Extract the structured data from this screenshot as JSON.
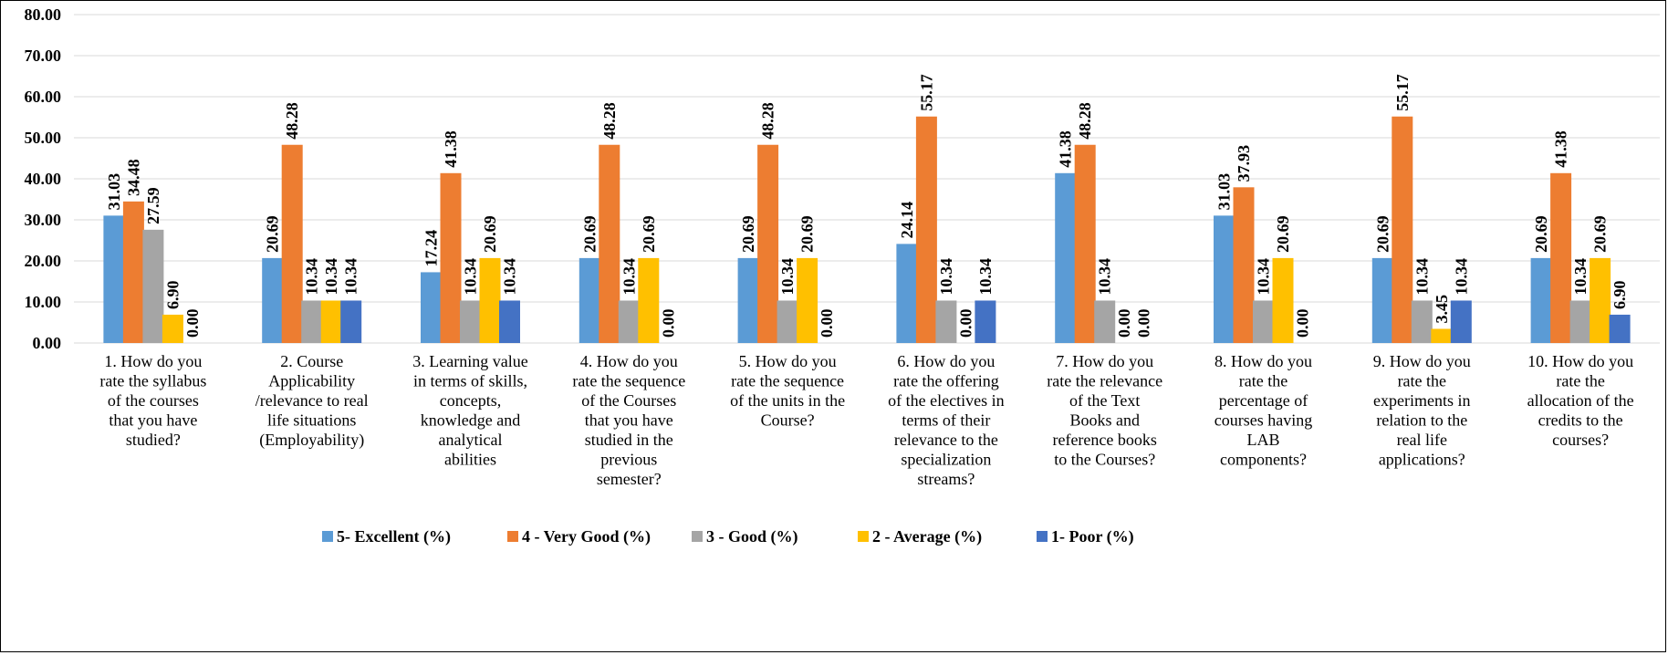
{
  "chart_data": {
    "type": "bar",
    "title": "",
    "xlabel": "",
    "ylabel": "",
    "ylim": [
      0,
      80
    ],
    "yticks": [
      "0.00",
      "10.00",
      "20.00",
      "30.00",
      "40.00",
      "50.00",
      "60.00",
      "70.00",
      "80.00"
    ],
    "grid": true,
    "legend_position": "bottom",
    "categories": [
      "1. How do you rate the syllabus of the courses that you have studied?",
      "2. Course Applicability /relevance to real life situations (Employability)",
      "3. Learning value in terms of skills, concepts, knowledge and analytical abilities",
      "4. How do you rate the sequence of the Courses that you have studied in the previous semester?",
      "5. How do you rate the sequence of the units in the Course?",
      "6. How do you rate the offering of the electives in terms of their relevance to the specialization streams?",
      "7. How do you rate the relevance of the Text Books and reference books to the Courses?",
      "8. How do you rate the percentage of courses having LAB components?",
      "9. How do you rate the experiments in relation to the real life applications?",
      "10. How do you rate the allocation of the credits to the courses?"
    ],
    "category_lines": [
      [
        "1. How do you",
        "rate the syllabus",
        "of the courses",
        "that you have",
        "studied?"
      ],
      [
        "2. Course",
        "Applicability",
        "/relevance to real",
        "life situations",
        "(Employability)"
      ],
      [
        "3. Learning value",
        "in terms of skills,",
        "concepts,",
        "knowledge and",
        "analytical",
        "abilities"
      ],
      [
        "4. How do you",
        "rate the sequence",
        "of the Courses",
        "that you have",
        "studied in the",
        "previous",
        "semester?"
      ],
      [
        "5. How do you",
        "rate the sequence",
        "of the units in the",
        "Course?"
      ],
      [
        "6. How do you",
        "rate the offering",
        "of the electives in",
        "terms of their",
        "relevance to the",
        "specialization",
        "streams?"
      ],
      [
        "7. How do you",
        "rate the relevance",
        "of the Text",
        "Books and",
        "reference books",
        "to the Courses?"
      ],
      [
        "8. How do you",
        "rate the",
        "percentage of",
        "courses having",
        "LAB",
        "components?"
      ],
      [
        "9. How do you",
        "rate the",
        "experiments in",
        "relation to the",
        "real life",
        "applications?"
      ],
      [
        "10. How do you",
        "rate the",
        "allocation of the",
        "credits to the",
        "courses?"
      ]
    ],
    "series": [
      {
        "name": "5- Excellent (%)",
        "color": "#5B9BD5",
        "values": [
          31.03,
          20.69,
          17.24,
          20.69,
          20.69,
          24.14,
          41.38,
          31.03,
          20.69,
          20.69
        ],
        "labels": [
          "31.03",
          "20.69",
          "17.24",
          "20.69",
          "20.69",
          "24.14",
          "41.38",
          "31.03",
          "20.69",
          "20.69"
        ]
      },
      {
        "name": "4 - Very Good (%)",
        "color": "#ED7D31",
        "values": [
          34.48,
          48.28,
          41.38,
          48.28,
          48.28,
          55.17,
          48.28,
          37.93,
          55.17,
          41.38
        ],
        "labels": [
          "34.48",
          "48.28",
          "41.38",
          "48.28",
          "48.28",
          "55.17",
          "48.28",
          "37.93",
          "55.17",
          "41.38"
        ]
      },
      {
        "name": "3 - Good (%)",
        "color": "#A5A5A5",
        "values": [
          27.59,
          10.34,
          10.34,
          10.34,
          10.34,
          10.34,
          10.34,
          10.34,
          10.34,
          10.34
        ],
        "labels": [
          "27.59",
          "10.34",
          "10.34",
          "10.34",
          "10.34",
          "10.34",
          "10.34",
          "10.34",
          "10.34",
          "10.34"
        ]
      },
      {
        "name": "2 - Average (%)",
        "color": "#FFC000",
        "values": [
          6.9,
          10.34,
          20.69,
          20.69,
          20.69,
          0.0,
          0.0,
          20.69,
          3.45,
          20.69
        ],
        "labels": [
          "6.90",
          "10.34",
          "20.69",
          "20.69",
          "20.69",
          "0.00",
          "0.00",
          "20.69",
          "3.45",
          "20.69"
        ]
      },
      {
        "name": "1- Poor (%)",
        "color": "#4472C4",
        "values": [
          0.0,
          10.34,
          10.34,
          0.0,
          0.0,
          10.34,
          0.0,
          0.0,
          10.34,
          6.9
        ],
        "labels": [
          "0.00",
          "10.34",
          "10.34",
          "0.00",
          "0.00",
          "10.34",
          "0.00",
          "0.00",
          "10.34",
          "6.90"
        ]
      }
    ]
  }
}
